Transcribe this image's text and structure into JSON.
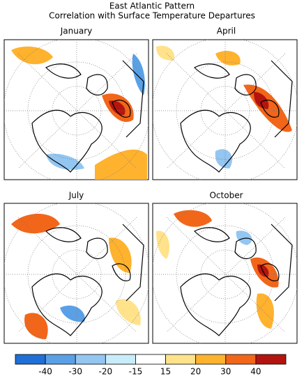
{
  "header": {
    "title": "East Atlantic Pattern",
    "subtitle": "Correlation with Surface Temperature Departures"
  },
  "panels": [
    {
      "title": "January"
    },
    {
      "title": "April"
    },
    {
      "title": "July"
    },
    {
      "title": "October"
    }
  ],
  "colorbar": {
    "ticks": [
      -40,
      -30,
      -20,
      -15,
      15,
      20,
      30,
      40
    ],
    "colors": [
      "#1f6fd6",
      "#5aa0e6",
      "#93c6f0",
      "#c8ecfa",
      "#ffffff",
      "#ffe28a",
      "#ffb22e",
      "#f2661a",
      "#b4140f"
    ]
  }
}
